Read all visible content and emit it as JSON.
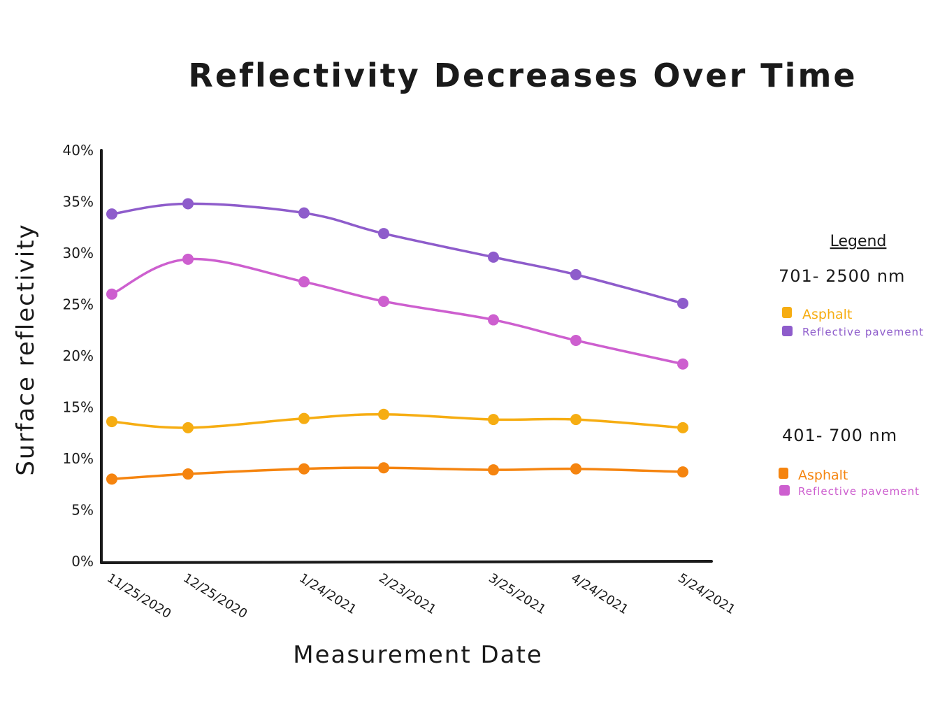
{
  "chart_data": {
    "type": "line",
    "title": "Reflectivity Decreases Over Time",
    "xlabel": "Measurement Date",
    "ylabel": "Surface reflectivity",
    "categories": [
      "11/25/2020",
      "12/25/2020",
      "1/24/2021",
      "2/23/2021",
      "3/25/2021",
      "4/24/2021",
      "5/24/2021"
    ],
    "y_ticks": [
      "0%",
      "5%",
      "10%",
      "15%",
      "20%",
      "25%",
      "30%",
      "35%",
      "40%"
    ],
    "ylim": [
      0,
      40
    ],
    "grid": false,
    "legend_position": "right",
    "legend": {
      "title": "Legend",
      "groups": [
        {
          "label": "701- 2500 nm",
          "entries": [
            {
              "label": "Asphalt",
              "color": "#f6ad12"
            },
            {
              "label": "Reflective pavement",
              "color": "#8e5ccb"
            }
          ]
        },
        {
          "label": "401- 700 nm",
          "entries": [
            {
              "label": "Asphalt",
              "color": "#f5840f"
            },
            {
              "label": "Reflective pavement",
              "color": "#cd5fcf"
            }
          ]
        }
      ]
    },
    "series": [
      {
        "group": "701- 2500 nm",
        "name": "Reflective pavement",
        "color": "#8e5ccb",
        "values": [
          33.8,
          34.8,
          33.9,
          31.9,
          29.6,
          27.9,
          25.1
        ]
      },
      {
        "group": "401- 700 nm",
        "name": "Reflective pavement",
        "color": "#cd5fcf",
        "values": [
          26.0,
          29.4,
          27.2,
          25.3,
          23.5,
          21.5,
          19.2
        ]
      },
      {
        "group": "701- 2500 nm",
        "name": "Asphalt",
        "color": "#f6ad12",
        "values": [
          13.6,
          13.0,
          13.9,
          14.3,
          13.8,
          13.8,
          13.0
        ]
      },
      {
        "group": "401- 700 nm",
        "name": "Asphalt",
        "color": "#f5840f",
        "values": [
          8.0,
          8.5,
          9.0,
          9.1,
          8.9,
          9.0,
          8.7
        ]
      }
    ]
  }
}
